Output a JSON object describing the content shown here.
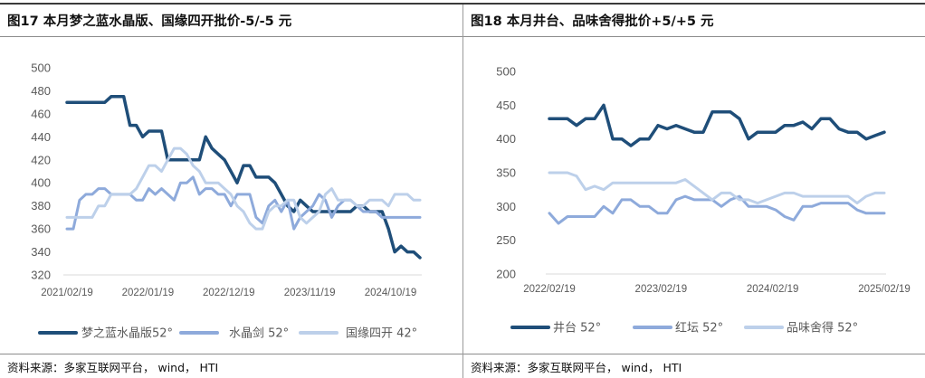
{
  "panels": [
    {
      "title": "图17 本月梦之蓝水晶版、国缘四开批价-5/-5 元",
      "source": "资料来源：多家互联网平台， wind， HTI"
    },
    {
      "title": "图18 本月井台、品味舍得批价+5/+5 元",
      "source": "资料来源：多家互联网平台， wind， HTI"
    }
  ],
  "chart_data": [
    {
      "type": "line",
      "title": "",
      "xlabel": "",
      "ylabel": "",
      "ylim": [
        320,
        500
      ],
      "yticks": [
        320,
        340,
        360,
        380,
        400,
        420,
        440,
        460,
        480,
        500
      ],
      "xtick_labels": [
        "2021/02/19",
        "2022/01/19",
        "2022/12/19",
        "2023/11/19",
        "2024/10/19"
      ],
      "x_start_label": "2021/02/19",
      "x_start_month": 0,
      "x_end_month": 48,
      "grid": false,
      "legend": "bottom",
      "series": [
        {
          "name": "梦之蓝水晶版52°",
          "color": "#1f4e79",
          "width": 3.5,
          "values": [
            470,
            470,
            470,
            470,
            470,
            470,
            470,
            475,
            475,
            475,
            450,
            450,
            440,
            445,
            445,
            445,
            420,
            420,
            420,
            420,
            420,
            420,
            440,
            430,
            425,
            420,
            410,
            400,
            415,
            415,
            405,
            405,
            405,
            400,
            390,
            380,
            375,
            385,
            380,
            375,
            375,
            375,
            375,
            375,
            375,
            375,
            380,
            380,
            375,
            375,
            375,
            360,
            340,
            345,
            340,
            340,
            335
          ]
        },
        {
          "name": "水晶剑 52°",
          "color": "#8eaadb",
          "width": 3,
          "values": [
            360,
            360,
            385,
            390,
            390,
            395,
            395,
            390,
            390,
            390,
            390,
            385,
            385,
            395,
            390,
            395,
            390,
            385,
            400,
            400,
            405,
            390,
            395,
            395,
            390,
            390,
            380,
            390,
            390,
            390,
            370,
            365,
            380,
            385,
            375,
            385,
            360,
            370,
            375,
            380,
            390,
            385,
            370,
            380,
            385,
            385,
            380,
            375,
            375,
            375,
            370,
            370,
            370,
            370,
            370,
            370,
            370
          ]
        },
        {
          "name": "国缘四开 42°",
          "color": "#bdd0ea",
          "width": 3,
          "values": [
            370,
            370,
            370,
            370,
            370,
            380,
            380,
            390,
            390,
            390,
            390,
            395,
            405,
            415,
            415,
            410,
            420,
            430,
            430,
            425,
            415,
            410,
            400,
            400,
            400,
            395,
            390,
            380,
            375,
            365,
            360,
            360,
            375,
            380,
            380,
            385,
            385,
            370,
            365,
            370,
            375,
            390,
            395,
            385,
            385,
            385,
            380,
            380,
            385,
            385,
            385,
            380,
            390,
            390,
            390,
            385,
            385
          ]
        }
      ]
    },
    {
      "type": "line",
      "title": "",
      "xlabel": "",
      "ylabel": "",
      "ylim": [
        200,
        500
      ],
      "yticks": [
        200,
        250,
        300,
        350,
        400,
        450,
        500
      ],
      "xtick_labels": [
        "2022/02/19",
        "2023/02/19",
        "2024/02/19",
        "2025/02/19"
      ],
      "x_start_label": "2022/02/19",
      "x_start_month": 0,
      "x_end_month": 36,
      "grid": false,
      "legend": "bottom",
      "series": [
        {
          "name": "井台 52°",
          "color": "#1f4e79",
          "width": 3.5,
          "values": [
            430,
            430,
            430,
            420,
            430,
            430,
            450,
            400,
            400,
            390,
            400,
            400,
            420,
            415,
            420,
            415,
            410,
            410,
            440,
            440,
            440,
            430,
            400,
            410,
            410,
            410,
            420,
            420,
            425,
            415,
            430,
            430,
            415,
            410,
            410,
            400,
            405,
            410
          ]
        },
        {
          "name": "红坛 52°",
          "color": "#8eaadb",
          "width": 3,
          "values": [
            290,
            275,
            285,
            285,
            285,
            285,
            300,
            290,
            310,
            310,
            300,
            300,
            290,
            290,
            310,
            315,
            310,
            310,
            310,
            300,
            310,
            315,
            300,
            300,
            300,
            295,
            285,
            280,
            300,
            300,
            305,
            305,
            305,
            305,
            295,
            290,
            290,
            290
          ]
        },
        {
          "name": "品味舍得 52°",
          "color": "#bdd0ea",
          "width": 3,
          "values": [
            350,
            350,
            350,
            345,
            325,
            330,
            325,
            335,
            335,
            335,
            335,
            335,
            335,
            335,
            335,
            340,
            330,
            320,
            310,
            320,
            320,
            310,
            310,
            305,
            310,
            315,
            320,
            320,
            315,
            315,
            315,
            315,
            315,
            315,
            305,
            315,
            320,
            320
          ]
        }
      ]
    }
  ]
}
